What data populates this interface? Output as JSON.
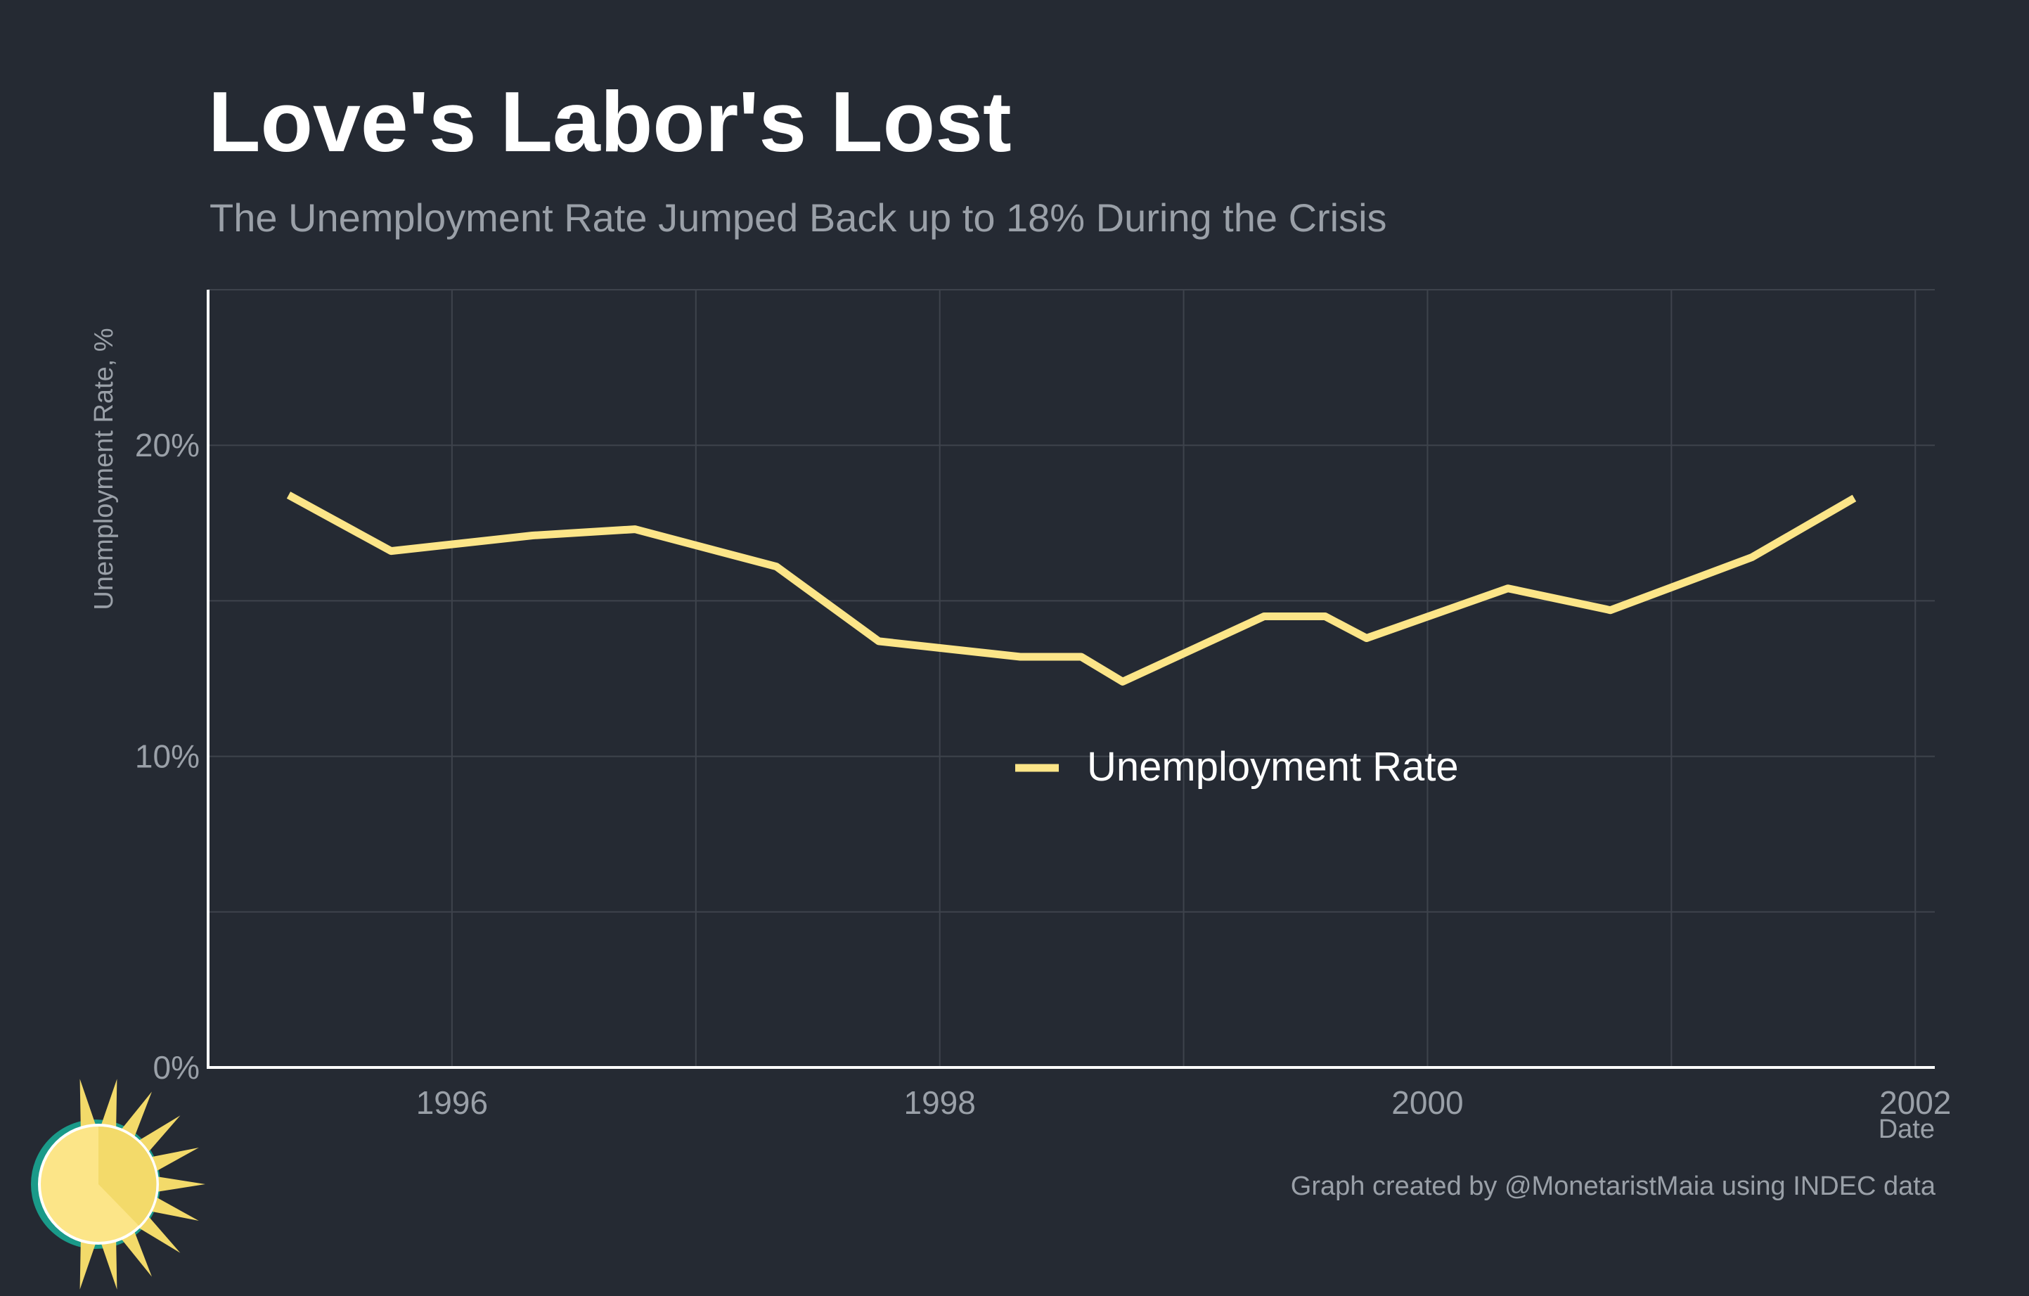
{
  "chart_data": {
    "type": "line",
    "title": "Love's Labor's Lost",
    "subtitle": "The Unemployment Rate Jumped Back up to 18% During the Crisis",
    "xlabel": "Date",
    "ylabel": "Unemployment Rate, %",
    "xlim": [
      1995.0,
      2002.08
    ],
    "ylim": [
      0,
      25
    ],
    "x_ticks": [
      1996,
      1998,
      2000,
      2002
    ],
    "x_tick_labels": [
      "1996",
      "1998",
      "2000",
      "2002"
    ],
    "y_ticks": [
      0,
      10,
      20
    ],
    "y_tick_labels": [
      "0%",
      "10%",
      "20%"
    ],
    "grid": true,
    "legend_position": "center",
    "series": [
      {
        "name": "Unemployment Rate",
        "color": "#fce588",
        "x": [
          1995.33,
          1995.75,
          1996.33,
          1996.75,
          1997.33,
          1997.75,
          1998.33,
          1998.58,
          1998.75,
          1999.33,
          1999.58,
          1999.75,
          2000.33,
          2000.75,
          2001.33,
          2001.75
        ],
        "y": [
          18.4,
          16.6,
          17.1,
          17.3,
          16.1,
          13.7,
          13.2,
          13.2,
          12.4,
          14.5,
          14.5,
          13.8,
          15.4,
          14.7,
          16.4,
          18.3
        ]
      }
    ]
  },
  "caption": "Graph created by @MonetaristMaia using INDEC data",
  "logo": {
    "name": "sun-logo",
    "colors": [
      "#fce588",
      "#f3da6a",
      "#1a9a89"
    ]
  }
}
